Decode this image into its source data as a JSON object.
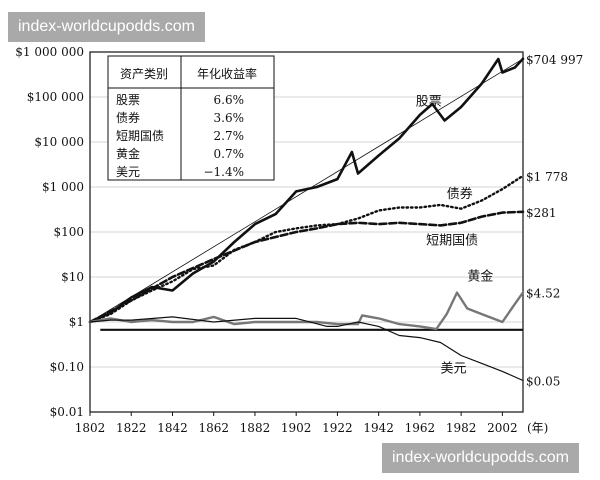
{
  "watermark_top": "index-worldcupodds.com",
  "watermark_bottom": "index-worldcupodds.com",
  "chart_data": {
    "type": "line",
    "yscale": "log",
    "ylim": [
      0.01,
      1000000
    ],
    "xlim": [
      1802,
      2012
    ],
    "x_ticks": [
      "1802",
      "1822",
      "1842",
      "1862",
      "1882",
      "1902",
      "1922",
      "1942",
      "1962",
      "1982",
      "2002"
    ],
    "x_unit": "(年)",
    "y_ticks": [
      {
        "value": 1000000,
        "label": "$1 000 000"
      },
      {
        "value": 100000,
        "label": "$100 000"
      },
      {
        "value": 10000,
        "label": "$10 000"
      },
      {
        "value": 1000,
        "label": "$1 000"
      },
      {
        "value": 100,
        "label": "$100"
      },
      {
        "value": 10,
        "label": "$10"
      },
      {
        "value": 1,
        "label": "$1"
      },
      {
        "value": 0.1,
        "label": "$0.10"
      },
      {
        "value": 0.01,
        "label": "$0.01"
      }
    ],
    "baseline": 0.67,
    "series": [
      {
        "key": "stocks",
        "name": "股票",
        "style": "solid-thick",
        "color": "#111111",
        "end_label": "$704 997",
        "points": [
          [
            1802,
            1
          ],
          [
            1812,
            1.6
          ],
          [
            1822,
            3.5
          ],
          [
            1832,
            6
          ],
          [
            1842,
            5
          ],
          [
            1852,
            12
          ],
          [
            1862,
            22
          ],
          [
            1872,
            60
          ],
          [
            1882,
            150
          ],
          [
            1892,
            250
          ],
          [
            1902,
            800
          ],
          [
            1912,
            1000
          ],
          [
            1922,
            1500
          ],
          [
            1929,
            6000
          ],
          [
            1932,
            2000
          ],
          [
            1942,
            5000
          ],
          [
            1952,
            12000
          ],
          [
            1962,
            40000
          ],
          [
            1968,
            70000
          ],
          [
            1974,
            30000
          ],
          [
            1982,
            60000
          ],
          [
            1992,
            200000
          ],
          [
            2000,
            700000
          ],
          [
            2002,
            350000
          ],
          [
            2008,
            450000
          ],
          [
            2012,
            704997
          ]
        ]
      },
      {
        "key": "bonds",
        "name": "债券",
        "style": "dotted",
        "color": "#111111",
        "end_label": "$1 778",
        "points": [
          [
            1802,
            1
          ],
          [
            1812,
            1.5
          ],
          [
            1822,
            3
          ],
          [
            1832,
            5
          ],
          [
            1842,
            8
          ],
          [
            1852,
            15
          ],
          [
            1862,
            18
          ],
          [
            1872,
            40
          ],
          [
            1882,
            60
          ],
          [
            1892,
            100
          ],
          [
            1902,
            120
          ],
          [
            1912,
            140
          ],
          [
            1922,
            150
          ],
          [
            1932,
            200
          ],
          [
            1942,
            300
          ],
          [
            1952,
            350
          ],
          [
            1962,
            350
          ],
          [
            1972,
            400
          ],
          [
            1982,
            330
          ],
          [
            1992,
            500
          ],
          [
            2002,
            900
          ],
          [
            2012,
            1778
          ]
        ]
      },
      {
        "key": "tbills",
        "name": "短期国债",
        "style": "dashed",
        "color": "#111111",
        "end_label": "$281",
        "points": [
          [
            1802,
            1
          ],
          [
            1822,
            3
          ],
          [
            1842,
            10
          ],
          [
            1862,
            25
          ],
          [
            1882,
            60
          ],
          [
            1902,
            100
          ],
          [
            1912,
            120
          ],
          [
            1922,
            150
          ],
          [
            1932,
            160
          ],
          [
            1942,
            150
          ],
          [
            1952,
            160
          ],
          [
            1962,
            150
          ],
          [
            1972,
            140
          ],
          [
            1982,
            160
          ],
          [
            1992,
            220
          ],
          [
            2002,
            270
          ],
          [
            2012,
            281
          ]
        ]
      },
      {
        "key": "gold",
        "name": "黄金",
        "style": "solid",
        "color": "#777777",
        "end_label": "$4.52",
        "points": [
          [
            1802,
            1
          ],
          [
            1812,
            1.2
          ],
          [
            1822,
            1
          ],
          [
            1832,
            1.1
          ],
          [
            1842,
            1
          ],
          [
            1852,
            1
          ],
          [
            1862,
            1.3
          ],
          [
            1872,
            0.9
          ],
          [
            1882,
            1
          ],
          [
            1892,
            1
          ],
          [
            1902,
            1
          ],
          [
            1912,
            1
          ],
          [
            1922,
            0.9
          ],
          [
            1932,
            0.9
          ],
          [
            1934,
            1.4
          ],
          [
            1942,
            1.2
          ],
          [
            1952,
            0.9
          ],
          [
            1962,
            0.8
          ],
          [
            1970,
            0.7
          ],
          [
            1975,
            1.5
          ],
          [
            1980,
            4.5
          ],
          [
            1985,
            2
          ],
          [
            1992,
            1.5
          ],
          [
            2002,
            1
          ],
          [
            2008,
            2.5
          ],
          [
            2012,
            4.52
          ]
        ]
      },
      {
        "key": "dollar",
        "name": "美元",
        "style": "solid-thin",
        "color": "#111111",
        "end_label": "$0.05",
        "points": [
          [
            1802,
            1
          ],
          [
            1812,
            1.1
          ],
          [
            1822,
            1.1
          ],
          [
            1842,
            1.3
          ],
          [
            1862,
            1
          ],
          [
            1882,
            1.2
          ],
          [
            1902,
            1.2
          ],
          [
            1917,
            0.8
          ],
          [
            1922,
            0.8
          ],
          [
            1932,
            1
          ],
          [
            1942,
            0.8
          ],
          [
            1952,
            0.5
          ],
          [
            1962,
            0.45
          ],
          [
            1972,
            0.35
          ],
          [
            1982,
            0.18
          ],
          [
            1992,
            0.12
          ],
          [
            2002,
            0.08
          ],
          [
            2012,
            0.05
          ]
        ]
      }
    ],
    "series_labels": [
      {
        "key": "stocks",
        "text": "股票"
      },
      {
        "key": "bonds",
        "text": "债券"
      },
      {
        "key": "tbills",
        "text": "短期国债"
      },
      {
        "key": "gold",
        "text": "黄金"
      },
      {
        "key": "dollar",
        "text": "美元"
      }
    ],
    "legend_table": {
      "headers": [
        "资产类别",
        "年化收益率"
      ],
      "rows": [
        [
          "股票",
          "6.6%"
        ],
        [
          "债券",
          "3.6%"
        ],
        [
          "短期国债",
          "2.7%"
        ],
        [
          "黄金",
          "0.7%"
        ],
        [
          "美元",
          "−1.4%"
        ]
      ]
    }
  }
}
